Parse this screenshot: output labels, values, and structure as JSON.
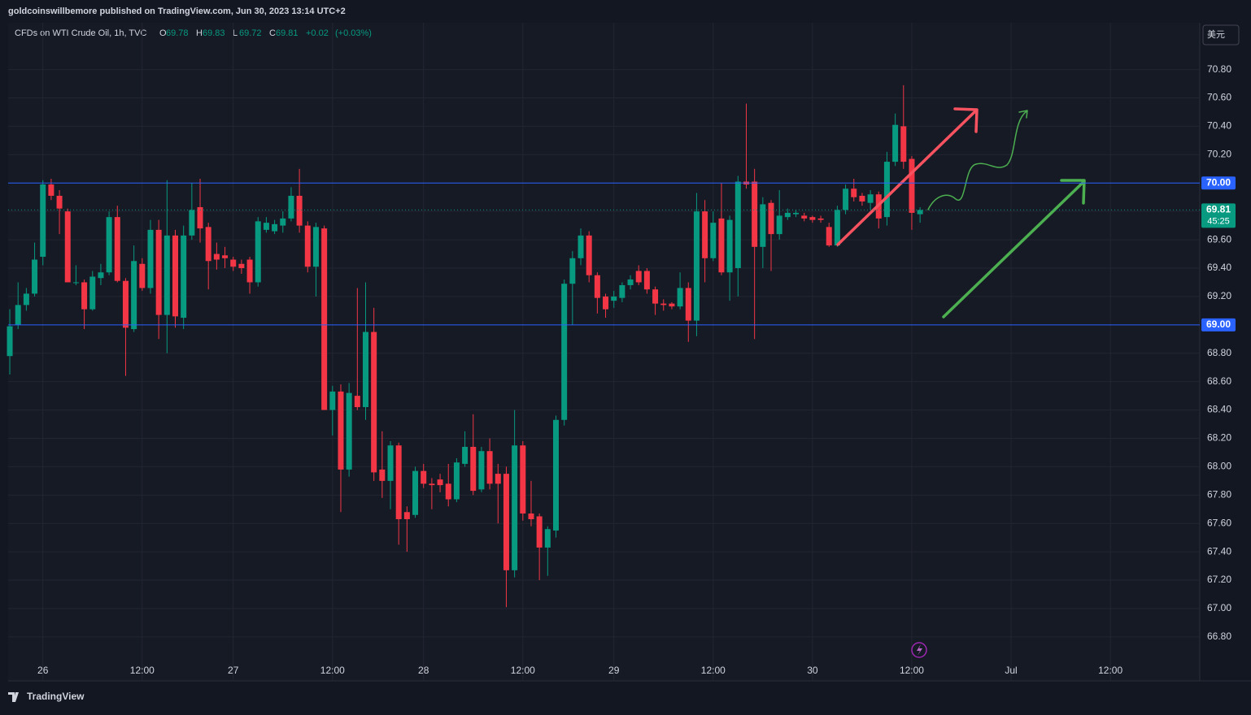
{
  "header": {
    "publisher": "goldcoinswillbemore published on TradingView.com, Jun 30, 2023 13:14 UTC+2"
  },
  "currency_button": "美元",
  "footer": {
    "logo": "TradingView"
  },
  "chart_data": {
    "type": "candlestick",
    "title": "CFDs on WTI Crude Oil, 1h, TVC",
    "ohlc_letters": [
      "O",
      "H",
      "L",
      "C"
    ],
    "ohlc_values": [
      69.78,
      69.83,
      69.72,
      69.81
    ],
    "change": "+0.02",
    "change_pct": "(+0.03%)",
    "up_color": "#089981",
    "down_color": "#f23645",
    "open": [
      68.78,
      69.0,
      69.14,
      69.22,
      69.48,
      69.99,
      69.91,
      69.8,
      69.3,
      69.3,
      69.11,
      69.33,
      69.37,
      69.76,
      69.31,
      68.97,
      69.43,
      69.26,
      69.67,
      69.07,
      69.63,
      69.05,
      69.63,
      69.83,
      69.69,
      69.5,
      69.49,
      69.46,
      69.43,
      69.46,
      69.3,
      69.67,
      69.66,
      69.7,
      69.75,
      69.91,
      69.7,
      69.41,
      69.68,
      68.4,
      68.53,
      67.98,
      68.5,
      68.42,
      68.95,
      67.98,
      67.9,
      68.15,
      67.68,
      67.66,
      67.97,
      67.88,
      67.91,
      67.88,
      67.77,
      68.02,
      68.14,
      67.84,
      68.11,
      67.95,
      67.95,
      67.27,
      68.15,
      67.67,
      67.65,
      67.43,
      67.55,
      68.33,
      69.29,
      69.47,
      69.63,
      69.35,
      69.2,
      69.17,
      69.19,
      69.28,
      69.38,
      69.38,
      69.25,
      69.15,
      69.15,
      69.13,
      69.26,
      69.03,
      69.8,
      69.47,
      69.75,
      69.37,
      69.4,
      70.01,
      70.01,
      69.55,
      69.86,
      69.64,
      69.76,
      69.78,
      69.77,
      69.76,
      69.75,
      69.69,
      69.56,
      69.81,
      69.96,
      69.91,
      69.86,
      69.92,
      69.76,
      70.15,
      70.4,
      70.17,
      69.78
    ],
    "high": [
      69.11,
      69.3,
      69.26,
      69.58,
      70.02,
      70.03,
      69.95,
      69.82,
      69.42,
      69.32,
      69.38,
      69.43,
      69.8,
      69.84,
      69.33,
      69.56,
      69.47,
      69.74,
      69.74,
      70.02,
      69.67,
      69.7,
      70.0,
      70.03,
      69.72,
      69.58,
      69.55,
      69.48,
      69.46,
      69.48,
      69.76,
      69.76,
      69.74,
      69.8,
      69.97,
      70.1,
      69.73,
      69.72,
      69.7,
      68.57,
      68.58,
      68.59,
      69.26,
      69.3,
      69.12,
      68.25,
      68.18,
      68.17,
      67.72,
      68.0,
      68.02,
      67.92,
      67.95,
      68.02,
      68.06,
      68.25,
      68.37,
      68.14,
      68.2,
      68.02,
      68.0,
      68.4,
      68.18,
      67.9,
      67.67,
      67.58,
      68.36,
      69.32,
      69.52,
      69.68,
      69.66,
      69.37,
      69.22,
      69.24,
      69.3,
      69.35,
      69.42,
      69.4,
      69.27,
      69.18,
      69.16,
      69.37,
      69.3,
      69.93,
      69.88,
      69.8,
      70.0,
      69.77,
      70.05,
      70.56,
      70.1,
      69.9,
      69.88,
      69.95,
      69.82,
      69.81,
      69.79,
      69.77,
      69.77,
      69.72,
      69.84,
      69.99,
      70.03,
      69.93,
      69.95,
      69.94,
      70.22,
      70.49,
      70.69,
      70.19,
      69.83
    ],
    "low": [
      68.65,
      68.97,
      69.1,
      69.2,
      69.42,
      69.88,
      69.64,
      69.3,
      69.28,
      68.97,
      69.1,
      69.28,
      69.35,
      69.3,
      68.64,
      68.95,
      69.24,
      69.22,
      68.9,
      68.8,
      68.98,
      68.97,
      69.6,
      69.58,
      69.25,
      69.39,
      69.4,
      69.38,
      69.36,
      69.22,
      69.27,
      69.65,
      69.64,
      69.65,
      69.73,
      69.65,
      69.37,
      69.2,
      68.4,
      68.22,
      67.68,
      67.93,
      68.4,
      68.33,
      67.9,
      67.78,
      67.7,
      67.45,
      67.4,
      67.64,
      67.85,
      67.7,
      67.82,
      67.72,
      67.75,
      68.0,
      67.8,
      67.82,
      67.84,
      67.6,
      67.01,
      67.22,
      67.62,
      67.58,
      67.2,
      67.23,
      67.5,
      68.29,
      69.0,
      69.42,
      69.3,
      69.08,
      69.05,
      69.12,
      69.16,
      69.25,
      69.28,
      69.22,
      69.07,
      69.1,
      69.11,
      69.11,
      68.88,
      68.92,
      69.3,
      69.45,
      69.35,
      69.17,
      69.2,
      69.96,
      68.9,
      69.4,
      69.38,
      69.6,
      69.74,
      69.76,
      69.73,
      69.72,
      69.72,
      69.55,
      69.55,
      69.78,
      69.87,
      69.84,
      69.81,
      69.68,
      69.7,
      70.12,
      70.1,
      69.67,
      69.72
    ],
    "close": [
      68.99,
      69.14,
      69.22,
      69.46,
      69.99,
      69.91,
      69.82,
      69.3,
      69.3,
      69.11,
      69.34,
      69.37,
      69.76,
      69.31,
      68.98,
      69.45,
      69.26,
      69.67,
      69.07,
      69.63,
      69.06,
      69.63,
      69.81,
      69.68,
      69.45,
      69.46,
      69.47,
      69.41,
      69.4,
      69.3,
      69.73,
      69.72,
      69.71,
      69.75,
      69.91,
      69.7,
      69.41,
      69.69,
      68.4,
      68.53,
      67.98,
      68.52,
      68.42,
      68.95,
      67.96,
      67.9,
      68.15,
      67.63,
      67.63,
      67.97,
      67.88,
      67.87,
      67.87,
      67.77,
      68.03,
      68.14,
      67.83,
      68.11,
      67.88,
      67.88,
      67.27,
      68.15,
      67.67,
      67.63,
      67.43,
      67.56,
      68.33,
      69.29,
      69.47,
      69.63,
      69.35,
      69.19,
      69.11,
      69.2,
      69.28,
      69.32,
      69.3,
      69.25,
      69.15,
      69.14,
      69.13,
      69.26,
      69.03,
      69.8,
      69.47,
      69.72,
      69.37,
      69.74,
      70.01,
      69.99,
      69.55,
      69.85,
      69.64,
      69.77,
      69.79,
      69.79,
      69.75,
      69.74,
      69.74,
      69.56,
      69.81,
      69.96,
      69.9,
      69.87,
      69.92,
      69.75,
      70.15,
      70.41,
      70.15,
      69.79,
      69.81
    ],
    "xlim": [
      -0.2,
      143.8
    ],
    "xticks": [
      {
        "value": 4,
        "label": "26"
      },
      {
        "value": 16,
        "label": "12:00"
      },
      {
        "value": 27,
        "label": "27"
      },
      {
        "value": 39,
        "label": "12:00"
      },
      {
        "value": 50,
        "label": "28"
      },
      {
        "value": 62,
        "label": "12:00"
      },
      {
        "value": 73,
        "label": "29"
      },
      {
        "value": 85,
        "label": "12:00"
      },
      {
        "value": 97,
        "label": "30"
      },
      {
        "value": 109,
        "label": "12:00"
      },
      {
        "value": 121,
        "label": "Jul"
      },
      {
        "value": 133,
        "label": "12:00"
      }
    ],
    "ylim": [
      66.49,
      71.13
    ],
    "yticks": [
      {
        "value": 66.8,
        "label": "66.80"
      },
      {
        "value": 67,
        "label": "67.00"
      },
      {
        "value": 67.2,
        "label": "67.20"
      },
      {
        "value": 67.4,
        "label": "67.40"
      },
      {
        "value": 67.6,
        "label": "67.60"
      },
      {
        "value": 67.8,
        "label": "67.80"
      },
      {
        "value": 68,
        "label": "68.00"
      },
      {
        "value": 68.2,
        "label": "68.20"
      },
      {
        "value": 68.4,
        "label": "68.40"
      },
      {
        "value": 68.6,
        "label": "68.60"
      },
      {
        "value": 68.8,
        "label": "68.80"
      },
      {
        "value": 69.2,
        "label": "69.20"
      },
      {
        "value": 69.4,
        "label": "69.40"
      },
      {
        "value": 69.6,
        "label": "69.60"
      },
      {
        "value": 69.8,
        "label": "69.80"
      },
      {
        "value": 70.2,
        "label": "70.20"
      },
      {
        "value": 70.4,
        "label": "70.40"
      },
      {
        "value": 70.6,
        "label": "70.60"
      },
      {
        "value": 70.8,
        "label": "70.80"
      }
    ],
    "grid": true,
    "hlines": [
      {
        "value": 70,
        "label": "70.00"
      },
      {
        "value": 69,
        "label": "69.00"
      }
    ],
    "hline_color": "#2962ff",
    "last_price": 69.81,
    "countdown": "45:25"
  }
}
